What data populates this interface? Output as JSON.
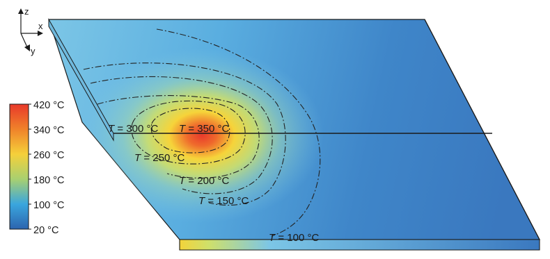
{
  "axes": {
    "z": "z",
    "x": "x",
    "y": "y"
  },
  "colorbar": {
    "ticks": [
      "420 °C",
      "340 °C",
      "260 °C",
      "180 °C",
      "100 °C",
      "20 °C"
    ],
    "colors": [
      "#e8392a",
      "#f0822a",
      "#f5d03a",
      "#a8d070",
      "#3aa6de",
      "#2c64ae"
    ]
  },
  "isotherms": [
    {
      "T": "T",
      "text": " = 300 °C"
    },
    {
      "T": "T",
      "text": " = 350 °C"
    },
    {
      "T": "T",
      "text": " = 250 °C"
    },
    {
      "T": "T",
      "text": " = 200 °C"
    },
    {
      "T": "T",
      "text": " = 150 °C"
    },
    {
      "T": "T",
      "text": " = 100 °C"
    }
  ]
}
